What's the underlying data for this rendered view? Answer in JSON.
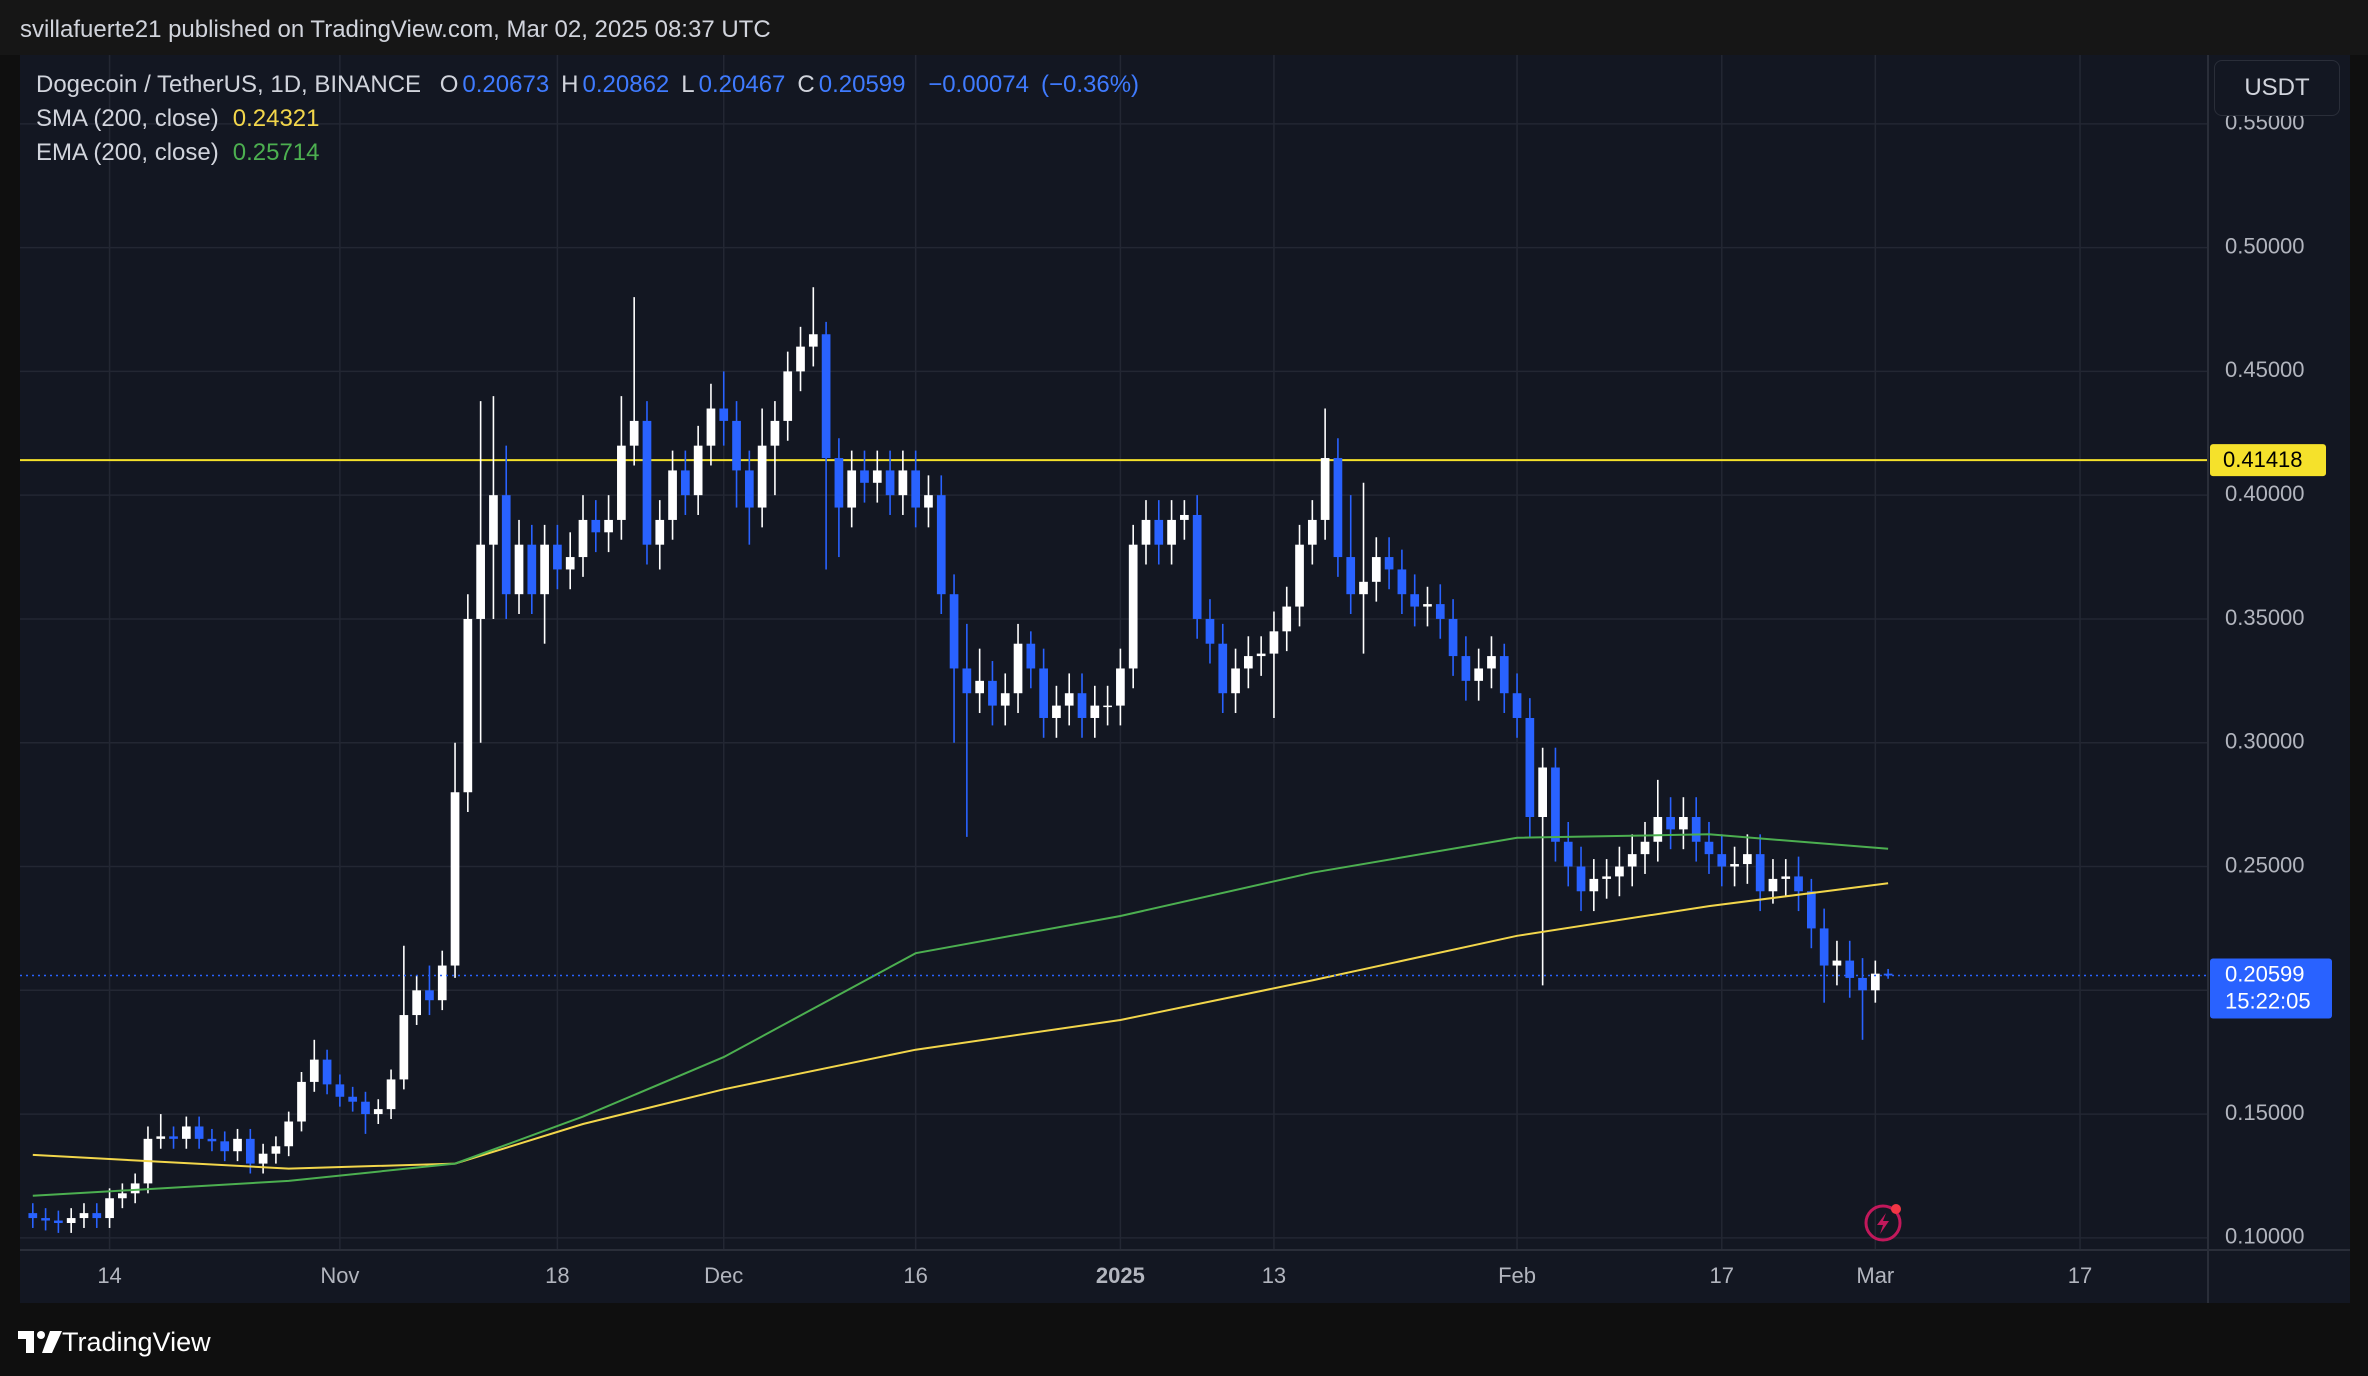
{
  "header": {
    "published": "svillafuerte21 published on TradingView.com, Mar 02, 2025 08:37 UTC"
  },
  "footer": {
    "brand": "TradingView"
  },
  "chart_data": {
    "type": "candlestick",
    "symbol": "Dogecoin / TetherUS, 1D, BINANCE",
    "currency": "USDT",
    "quote": [
      {
        "label": "O",
        "value": 0.20673
      },
      {
        "label": "H",
        "value": 0.20862
      },
      {
        "label": "L",
        "value": 0.20467
      },
      {
        "label": "C",
        "value": 0.20599
      }
    ],
    "change": {
      "value": -0.00074,
      "label": "−0.00074"
    },
    "change_pct": {
      "value": -0.36,
      "label": "(−0.36%)"
    },
    "countdown": "15:22:05",
    "up_color": "#ffffff",
    "down_color": "#2962ff",
    "hline": {
      "value": 0.41418,
      "color": "#f5e12b"
    },
    "xlim": [
      "2024-10-07",
      "2025-03-27"
    ],
    "xticks": [
      {
        "value": "2024-10-14",
        "label": "14"
      },
      {
        "value": "2024-11-01",
        "label": "Nov"
      },
      {
        "value": "2024-11-18",
        "label": "18"
      },
      {
        "value": "2024-12-01",
        "label": "Dec"
      },
      {
        "value": "2024-12-16",
        "label": "16"
      },
      {
        "value": "2025-01-01",
        "label": "2025"
      },
      {
        "value": "2025-01-13",
        "label": "13"
      },
      {
        "value": "2025-02-01",
        "label": "Feb"
      },
      {
        "value": "2025-02-17",
        "label": "17"
      },
      {
        "value": "2025-03-01",
        "label": "Mar"
      },
      {
        "value": "2025-03-17",
        "label": "17"
      }
    ],
    "ylim": [
      0.0951,
      0.5778
    ],
    "yticks": [
      {
        "value": 0.1,
        "label": "0.10000"
      },
      {
        "value": 0.15,
        "label": "0.15000"
      },
      {
        "value": 0.2,
        "label": "0.20000"
      },
      {
        "value": 0.25,
        "label": "0.25000"
      },
      {
        "value": 0.3,
        "label": "0.30000"
      },
      {
        "value": 0.35,
        "label": "0.35000"
      },
      {
        "value": 0.4,
        "label": "0.40000"
      },
      {
        "value": 0.45,
        "label": "0.45000"
      },
      {
        "value": 0.5,
        "label": "0.50000"
      },
      {
        "value": 0.55,
        "label": "0.55000"
      }
    ],
    "grid": true,
    "x": [
      "2024-10-08",
      "2024-10-09",
      "2024-10-10",
      "2024-10-11",
      "2024-10-12",
      "2024-10-13",
      "2024-10-14",
      "2024-10-15",
      "2024-10-16",
      "2024-10-17",
      "2024-10-18",
      "2024-10-19",
      "2024-10-20",
      "2024-10-21",
      "2024-10-22",
      "2024-10-23",
      "2024-10-24",
      "2024-10-25",
      "2024-10-26",
      "2024-10-27",
      "2024-10-28",
      "2024-10-29",
      "2024-10-30",
      "2024-10-31",
      "2024-11-01",
      "2024-11-02",
      "2024-11-03",
      "2024-11-04",
      "2024-11-05",
      "2024-11-06",
      "2024-11-07",
      "2024-11-08",
      "2024-11-09",
      "2024-11-10",
      "2024-11-11",
      "2024-11-12",
      "2024-11-13",
      "2024-11-14",
      "2024-11-15",
      "2024-11-16",
      "2024-11-17",
      "2024-11-18",
      "2024-11-19",
      "2024-11-20",
      "2024-11-21",
      "2024-11-22",
      "2024-11-23",
      "2024-11-24",
      "2024-11-25",
      "2024-11-26",
      "2024-11-27",
      "2024-11-28",
      "2024-11-29",
      "2024-11-30",
      "2024-12-01",
      "2024-12-02",
      "2024-12-03",
      "2024-12-04",
      "2024-12-05",
      "2024-12-06",
      "2024-12-07",
      "2024-12-08",
      "2024-12-09",
      "2024-12-10",
      "2024-12-11",
      "2024-12-12",
      "2024-12-13",
      "2024-12-14",
      "2024-12-15",
      "2024-12-16",
      "2024-12-17",
      "2024-12-18",
      "2024-12-19",
      "2024-12-20",
      "2024-12-21",
      "2024-12-22",
      "2024-12-23",
      "2024-12-24",
      "2024-12-25",
      "2024-12-26",
      "2024-12-27",
      "2024-12-28",
      "2024-12-29",
      "2024-12-30",
      "2024-12-31",
      "2025-01-01",
      "2025-01-02",
      "2025-01-03",
      "2025-01-04",
      "2025-01-05",
      "2025-01-06",
      "2025-01-07",
      "2025-01-08",
      "2025-01-09",
      "2025-01-10",
      "2025-01-11",
      "2025-01-12",
      "2025-01-13",
      "2025-01-14",
      "2025-01-15",
      "2025-01-16",
      "2025-01-17",
      "2025-01-18",
      "2025-01-19",
      "2025-01-20",
      "2025-01-21",
      "2025-01-22",
      "2025-01-23",
      "2025-01-24",
      "2025-01-25",
      "2025-01-26",
      "2025-01-27",
      "2025-01-28",
      "2025-01-29",
      "2025-01-30",
      "2025-01-31",
      "2025-02-01",
      "2025-02-02",
      "2025-02-03",
      "2025-02-04",
      "2025-02-05",
      "2025-02-06",
      "2025-02-07",
      "2025-02-08",
      "2025-02-09",
      "2025-02-10",
      "2025-02-11",
      "2025-02-12",
      "2025-02-13",
      "2025-02-14",
      "2025-02-15",
      "2025-02-16",
      "2025-02-17",
      "2025-02-18",
      "2025-02-19",
      "2025-02-20",
      "2025-02-21",
      "2025-02-22",
      "2025-02-23",
      "2025-02-24",
      "2025-02-25",
      "2025-02-26",
      "2025-02-27",
      "2025-02-28",
      "2025-03-01",
      "2025-03-02"
    ],
    "open": [
      0.11,
      0.108,
      0.107,
      0.106,
      0.108,
      0.11,
      0.108,
      0.116,
      0.118,
      0.122,
      0.14,
      0.141,
      0.14,
      0.145,
      0.14,
      0.139,
      0.135,
      0.14,
      0.13,
      0.134,
      0.137,
      0.147,
      0.163,
      0.172,
      0.162,
      0.157,
      0.155,
      0.15,
      0.152,
      0.164,
      0.19,
      0.2,
      0.196,
      0.21,
      0.28,
      0.35,
      0.38,
      0.4,
      0.36,
      0.38,
      0.36,
      0.38,
      0.37,
      0.375,
      0.39,
      0.385,
      0.39,
      0.42,
      0.43,
      0.38,
      0.39,
      0.41,
      0.4,
      0.42,
      0.435,
      0.43,
      0.41,
      0.395,
      0.42,
      0.43,
      0.45,
      0.46,
      0.465,
      0.415,
      0.395,
      0.41,
      0.405,
      0.41,
      0.4,
      0.41,
      0.395,
      0.4,
      0.36,
      0.33,
      0.32,
      0.325,
      0.315,
      0.32,
      0.34,
      0.33,
      0.31,
      0.315,
      0.32,
      0.31,
      0.315,
      0.315,
      0.33,
      0.38,
      0.39,
      0.38,
      0.39,
      0.392,
      0.35,
      0.34,
      0.32,
      0.33,
      0.335,
      0.336,
      0.345,
      0.355,
      0.38,
      0.39,
      0.415,
      0.375,
      0.36,
      0.365,
      0.375,
      0.37,
      0.36,
      0.355,
      0.356,
      0.35,
      0.335,
      0.325,
      0.33,
      0.335,
      0.32,
      0.31,
      0.27,
      0.29,
      0.26,
      0.25,
      0.24,
      0.245,
      0.246,
      0.25,
      0.255,
      0.26,
      0.27,
      0.265,
      0.27,
      0.26,
      0.255,
      0.25,
      0.251,
      0.255,
      0.24,
      0.245,
      0.246,
      0.24,
      0.225,
      0.21,
      0.212,
      0.205,
      0.2,
      0.20673
    ],
    "high": [
      0.114,
      0.112,
      0.111,
      0.112,
      0.114,
      0.114,
      0.12,
      0.122,
      0.126,
      0.145,
      0.15,
      0.145,
      0.149,
      0.149,
      0.144,
      0.143,
      0.144,
      0.144,
      0.138,
      0.141,
      0.151,
      0.167,
      0.18,
      0.176,
      0.166,
      0.161,
      0.159,
      0.156,
      0.168,
      0.218,
      0.206,
      0.21,
      0.216,
      0.3,
      0.36,
      0.438,
      0.44,
      0.42,
      0.39,
      0.388,
      0.388,
      0.388,
      0.385,
      0.4,
      0.398,
      0.4,
      0.44,
      0.48,
      0.438,
      0.398,
      0.418,
      0.418,
      0.428,
      0.445,
      0.45,
      0.438,
      0.418,
      0.435,
      0.438,
      0.458,
      0.468,
      0.484,
      0.47,
      0.423,
      0.418,
      0.418,
      0.418,
      0.418,
      0.418,
      0.418,
      0.408,
      0.408,
      0.368,
      0.348,
      0.338,
      0.333,
      0.328,
      0.348,
      0.345,
      0.338,
      0.323,
      0.328,
      0.328,
      0.323,
      0.323,
      0.338,
      0.388,
      0.398,
      0.398,
      0.398,
      0.398,
      0.4,
      0.358,
      0.348,
      0.338,
      0.343,
      0.343,
      0.353,
      0.363,
      0.388,
      0.398,
      0.435,
      0.423,
      0.4,
      0.405,
      0.383,
      0.383,
      0.378,
      0.368,
      0.363,
      0.364,
      0.358,
      0.343,
      0.338,
      0.343,
      0.34,
      0.328,
      0.318,
      0.298,
      0.298,
      0.268,
      0.258,
      0.253,
      0.253,
      0.258,
      0.263,
      0.268,
      0.285,
      0.278,
      0.278,
      0.278,
      0.268,
      0.263,
      0.258,
      0.263,
      0.263,
      0.253,
      0.253,
      0.254,
      0.245,
      0.233,
      0.22,
      0.22,
      0.213,
      0.212,
      0.20862
    ],
    "low": [
      0.104,
      0.103,
      0.102,
      0.102,
      0.104,
      0.104,
      0.104,
      0.112,
      0.114,
      0.118,
      0.136,
      0.136,
      0.136,
      0.136,
      0.135,
      0.131,
      0.131,
      0.126,
      0.126,
      0.13,
      0.133,
      0.143,
      0.159,
      0.158,
      0.153,
      0.151,
      0.142,
      0.146,
      0.148,
      0.16,
      0.186,
      0.19,
      0.192,
      0.205,
      0.272,
      0.3,
      0.35,
      0.35,
      0.352,
      0.352,
      0.34,
      0.362,
      0.362,
      0.367,
      0.377,
      0.377,
      0.382,
      0.412,
      0.372,
      0.37,
      0.382,
      0.392,
      0.392,
      0.412,
      0.42,
      0.395,
      0.38,
      0.387,
      0.4,
      0.422,
      0.442,
      0.452,
      0.37,
      0.375,
      0.387,
      0.397,
      0.397,
      0.392,
      0.392,
      0.387,
      0.387,
      0.352,
      0.3,
      0.262,
      0.312,
      0.307,
      0.307,
      0.312,
      0.322,
      0.302,
      0.302,
      0.307,
      0.302,
      0.302,
      0.307,
      0.307,
      0.322,
      0.372,
      0.372,
      0.372,
      0.382,
      0.342,
      0.332,
      0.312,
      0.312,
      0.322,
      0.327,
      0.31,
      0.337,
      0.347,
      0.372,
      0.382,
      0.367,
      0.352,
      0.336,
      0.357,
      0.362,
      0.352,
      0.347,
      0.347,
      0.342,
      0.327,
      0.317,
      0.317,
      0.322,
      0.312,
      0.302,
      0.262,
      0.202,
      0.252,
      0.242,
      0.232,
      0.232,
      0.237,
      0.238,
      0.242,
      0.247,
      0.252,
      0.257,
      0.257,
      0.252,
      0.247,
      0.242,
      0.242,
      0.243,
      0.232,
      0.235,
      0.238,
      0.232,
      0.217,
      0.195,
      0.202,
      0.197,
      0.18,
      0.195,
      0.20467
    ],
    "close": [
      0.108,
      0.107,
      0.106,
      0.108,
      0.11,
      0.108,
      0.116,
      0.118,
      0.122,
      0.14,
      0.141,
      0.14,
      0.145,
      0.14,
      0.139,
      0.135,
      0.14,
      0.13,
      0.134,
      0.137,
      0.147,
      0.163,
      0.172,
      0.162,
      0.157,
      0.155,
      0.15,
      0.152,
      0.164,
      0.19,
      0.2,
      0.196,
      0.21,
      0.28,
      0.35,
      0.38,
      0.4,
      0.36,
      0.38,
      0.36,
      0.38,
      0.37,
      0.375,
      0.39,
      0.385,
      0.39,
      0.42,
      0.43,
      0.38,
      0.39,
      0.41,
      0.4,
      0.42,
      0.435,
      0.43,
      0.41,
      0.395,
      0.42,
      0.43,
      0.45,
      0.46,
      0.465,
      0.415,
      0.395,
      0.41,
      0.405,
      0.41,
      0.4,
      0.41,
      0.395,
      0.4,
      0.36,
      0.33,
      0.32,
      0.325,
      0.315,
      0.32,
      0.34,
      0.33,
      0.31,
      0.315,
      0.32,
      0.31,
      0.315,
      0.315,
      0.33,
      0.38,
      0.39,
      0.38,
      0.39,
      0.392,
      0.35,
      0.34,
      0.32,
      0.33,
      0.335,
      0.336,
      0.345,
      0.355,
      0.38,
      0.39,
      0.415,
      0.375,
      0.36,
      0.365,
      0.375,
      0.37,
      0.36,
      0.355,
      0.356,
      0.35,
      0.335,
      0.325,
      0.33,
      0.335,
      0.32,
      0.31,
      0.27,
      0.29,
      0.26,
      0.25,
      0.24,
      0.245,
      0.246,
      0.25,
      0.255,
      0.26,
      0.27,
      0.265,
      0.27,
      0.26,
      0.255,
      0.25,
      0.251,
      0.255,
      0.24,
      0.245,
      0.246,
      0.24,
      0.225,
      0.21,
      0.212,
      0.205,
      0.2,
      0.20673,
      0.20599
    ],
    "series": [
      {
        "name": "SMA (200, close)",
        "color": "#f2d64b",
        "x": [
          "2024-10-08",
          "2024-10-28",
          "2024-11-10",
          "2024-11-20",
          "2024-12-01",
          "2024-12-16",
          "2025-01-01",
          "2025-01-16",
          "2025-02-01",
          "2025-02-16",
          "2025-03-02"
        ],
        "values": [
          0.1335,
          0.128,
          0.13,
          0.146,
          0.16,
          0.176,
          0.188,
          0.204,
          0.222,
          0.234,
          0.24321
        ]
      },
      {
        "name": "EMA (200, close)",
        "color": "#4caf50",
        "x": [
          "2024-10-08",
          "2024-10-28",
          "2024-11-10",
          "2024-11-20",
          "2024-12-01",
          "2024-12-16",
          "2025-01-01",
          "2025-01-16",
          "2025-02-01",
          "2025-02-16",
          "2025-03-02"
        ],
        "values": [
          0.117,
          0.123,
          0.13,
          0.149,
          0.173,
          0.215,
          0.23,
          0.2475,
          0.2616,
          0.263,
          0.25714
        ]
      }
    ]
  }
}
